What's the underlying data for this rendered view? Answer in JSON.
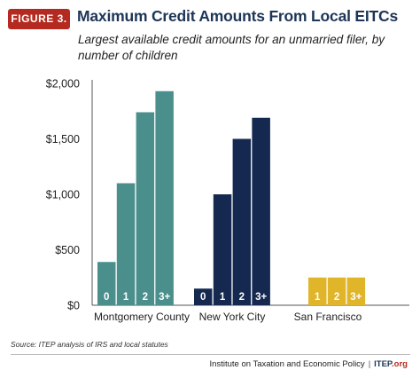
{
  "figure_badge": "FIGURE 3.",
  "title": "Maximum Credit Amounts From Local EITCs",
  "subtitle": "Largest available credit amounts for an unmarried filer, by number of children",
  "chart_data": {
    "type": "bar",
    "ylim": [
      0,
      2000
    ],
    "yticks": [
      "$2,000",
      "$1,500",
      "$1,000",
      "$500",
      "$0"
    ],
    "ytick_values": [
      2000,
      1500,
      1000,
      500,
      0
    ],
    "grid": false,
    "groups": [
      {
        "name": "Montgomery County",
        "color": "#4a8f8b",
        "bars": [
          {
            "label": "0",
            "value": 390
          },
          {
            "label": "1",
            "value": 1100
          },
          {
            "label": "2",
            "value": 1740
          },
          {
            "label": "3+",
            "value": 1930
          }
        ]
      },
      {
        "name": "New York City",
        "color": "#142850",
        "bars": [
          {
            "label": "0",
            "value": 150
          },
          {
            "label": "1",
            "value": 1000
          },
          {
            "label": "2",
            "value": 1500
          },
          {
            "label": "3+",
            "value": 1690
          }
        ]
      },
      {
        "name": "San Francisco",
        "color": "#e0b52a",
        "bars": [
          {
            "label": "1",
            "value": 250
          },
          {
            "label": "2",
            "value": 250
          },
          {
            "label": "3+",
            "value": 250
          }
        ]
      }
    ]
  },
  "source": "Source: ITEP analysis of IRS and local statutes",
  "footer": {
    "institute": "Institute on Taxation and Economic Policy",
    "separator": "|",
    "brand": "ITEP",
    "org": ".org"
  }
}
